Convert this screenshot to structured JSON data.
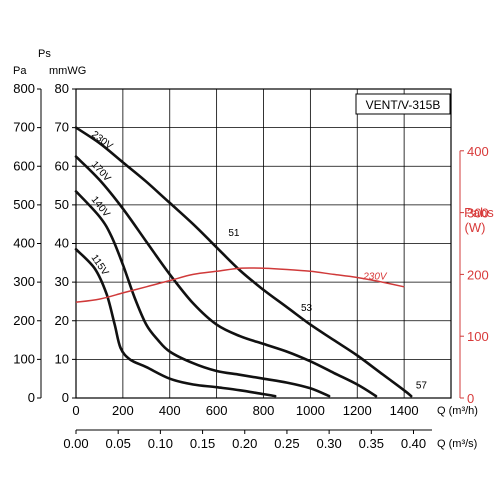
{
  "colors": {
    "axis": "#000000",
    "grid": "#000000",
    "curve": "#111111",
    "power": "#d03a3a",
    "power_text": "#d83a3a"
  },
  "chart_data": {
    "type": "line",
    "title": "",
    "model_label": "VENT/V-315B",
    "grid": true,
    "axes": {
      "pa_unit": "Pa",
      "ps_label": "Ps",
      "ps_unit": "mmWG",
      "power_label": "Pabs",
      "power_unit": "(W)",
      "q_h_label": "Q (m³/h)",
      "q_s_label": "Q (m³/s)",
      "q_range": [
        0,
        1600
      ],
      "pa_range": [
        0,
        800
      ],
      "mmwg_range": [
        0,
        80
      ],
      "power_range": [
        0,
        500
      ],
      "pa_ticks": [
        "0",
        "100",
        "200",
        "300",
        "400",
        "500",
        "600",
        "700",
        "800"
      ],
      "mmwg_ticks": [
        "0",
        "10",
        "20",
        "30",
        "40",
        "50",
        "60",
        "70",
        "80"
      ],
      "power_ticks": [
        "0",
        "100",
        "200",
        "300",
        "400"
      ],
      "q_h_ticks": [
        "0",
        "200",
        "400",
        "600",
        "800",
        "1000",
        "1200",
        "1400"
      ],
      "q_s_ticks": [
        "0.00",
        "0.05",
        "0.10",
        "0.15",
        "0.20",
        "0.25",
        "0.30",
        "0.35",
        "0.40"
      ]
    },
    "pressure_series": [
      {
        "name": "230V",
        "points": [
          [
            0,
            700
          ],
          [
            100,
            660
          ],
          [
            200,
            610
          ],
          [
            300,
            560
          ],
          [
            400,
            505
          ],
          [
            500,
            450
          ],
          [
            600,
            390
          ],
          [
            700,
            330
          ],
          [
            800,
            280
          ],
          [
            900,
            235
          ],
          [
            1000,
            190
          ],
          [
            1100,
            150
          ],
          [
            1200,
            110
          ],
          [
            1300,
            65
          ],
          [
            1400,
            20
          ],
          [
            1430,
            5
          ]
        ]
      },
      {
        "name": "170V",
        "points": [
          [
            0,
            625
          ],
          [
            100,
            565
          ],
          [
            200,
            490
          ],
          [
            300,
            405
          ],
          [
            400,
            320
          ],
          [
            500,
            245
          ],
          [
            600,
            190
          ],
          [
            700,
            160
          ],
          [
            800,
            140
          ],
          [
            900,
            120
          ],
          [
            1000,
            95
          ],
          [
            1100,
            65
          ],
          [
            1200,
            35
          ],
          [
            1280,
            5
          ]
        ]
      },
      {
        "name": "140V",
        "points": [
          [
            0,
            535
          ],
          [
            100,
            470
          ],
          [
            150,
            420
          ],
          [
            200,
            345
          ],
          [
            250,
            260
          ],
          [
            300,
            190
          ],
          [
            350,
            150
          ],
          [
            400,
            120
          ],
          [
            500,
            90
          ],
          [
            600,
            70
          ],
          [
            700,
            60
          ],
          [
            800,
            50
          ],
          [
            900,
            40
          ],
          [
            1000,
            25
          ],
          [
            1080,
            5
          ]
        ]
      },
      {
        "name": "115V",
        "points": [
          [
            0,
            385
          ],
          [
            80,
            335
          ],
          [
            130,
            270
          ],
          [
            165,
            190
          ],
          [
            190,
            130
          ],
          [
            230,
            100
          ],
          [
            300,
            80
          ],
          [
            400,
            50
          ],
          [
            500,
            35
          ],
          [
            600,
            28
          ],
          [
            700,
            20
          ],
          [
            800,
            10
          ],
          [
            850,
            5
          ]
        ]
      }
    ],
    "power_series": [
      {
        "name": "230V",
        "points": [
          [
            0,
            155
          ],
          [
            100,
            160
          ],
          [
            200,
            170
          ],
          [
            300,
            180
          ],
          [
            400,
            190
          ],
          [
            500,
            200
          ],
          [
            600,
            205
          ],
          [
            700,
            210
          ],
          [
            800,
            210
          ],
          [
            900,
            208
          ],
          [
            1000,
            205
          ],
          [
            1100,
            200
          ],
          [
            1200,
            195
          ],
          [
            1300,
            188
          ],
          [
            1400,
            180
          ]
        ]
      }
    ],
    "annotations": [
      {
        "text": "51",
        "q": 650,
        "pa": 420
      },
      {
        "text": "53",
        "q": 960,
        "pa": 225
      },
      {
        "text": "57",
        "q": 1450,
        "pa": 25
      }
    ]
  }
}
